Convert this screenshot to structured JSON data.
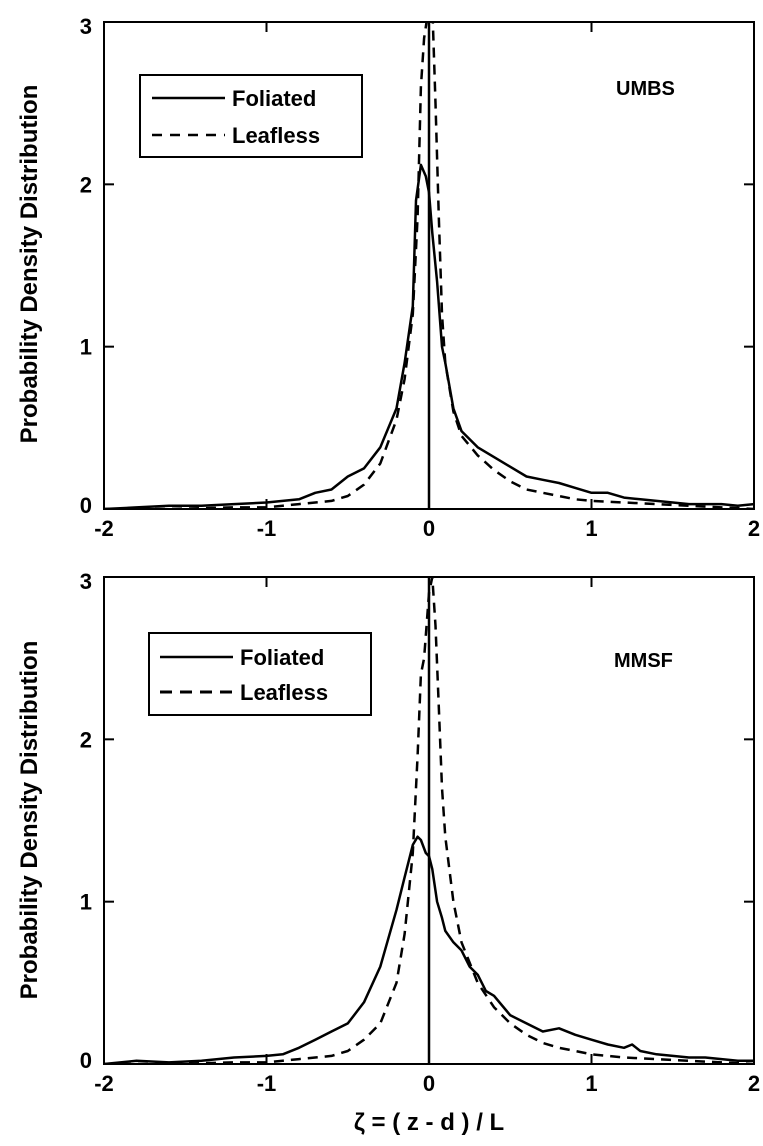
{
  "figure": {
    "xlabel": "ζ = ( z - d ) / L",
    "ylabel": "Probability Density Distribution"
  },
  "chart_data": [
    {
      "type": "line",
      "panel_label": "UMBS",
      "xlim": [
        -2,
        2
      ],
      "ylim": [
        0,
        3
      ],
      "xticks": [
        "-2",
        "-1",
        "0",
        "1",
        "2"
      ],
      "yticks": [
        "0",
        "1",
        "2",
        "3"
      ],
      "grid": false,
      "legend_position": "top-left",
      "vline_x": 0,
      "series": [
        {
          "name": "Foliated",
          "style": "solid",
          "x": [
            -2.0,
            -1.8,
            -1.6,
            -1.4,
            -1.2,
            -1.0,
            -0.9,
            -0.8,
            -0.7,
            -0.6,
            -0.5,
            -0.4,
            -0.3,
            -0.2,
            -0.15,
            -0.1,
            -0.08,
            -0.05,
            -0.02,
            0.0,
            0.02,
            0.05,
            0.08,
            0.1,
            0.15,
            0.2,
            0.3,
            0.4,
            0.5,
            0.6,
            0.7,
            0.8,
            0.9,
            1.0,
            1.1,
            1.2,
            1.3,
            1.4,
            1.5,
            1.6,
            1.7,
            1.8,
            1.9,
            2.0
          ],
          "y": [
            0.0,
            0.01,
            0.02,
            0.02,
            0.03,
            0.04,
            0.05,
            0.06,
            0.1,
            0.12,
            0.2,
            0.25,
            0.38,
            0.62,
            0.9,
            1.25,
            1.9,
            2.12,
            2.05,
            1.95,
            1.7,
            1.4,
            1.0,
            0.9,
            0.62,
            0.48,
            0.38,
            0.32,
            0.26,
            0.2,
            0.18,
            0.16,
            0.13,
            0.1,
            0.1,
            0.07,
            0.06,
            0.05,
            0.04,
            0.03,
            0.03,
            0.03,
            0.02,
            0.03
          ]
        },
        {
          "name": "Leafless",
          "style": "dashed",
          "x": [
            -2.0,
            -1.6,
            -1.2,
            -1.0,
            -0.8,
            -0.6,
            -0.5,
            -0.4,
            -0.3,
            -0.2,
            -0.15,
            -0.1,
            -0.07,
            -0.05,
            -0.03,
            0.0,
            0.02,
            0.04,
            0.06,
            0.08,
            0.1,
            0.15,
            0.2,
            0.3,
            0.4,
            0.5,
            0.6,
            0.7,
            0.8,
            0.9,
            1.0,
            1.2,
            1.4,
            1.6,
            1.8,
            2.0
          ],
          "y": [
            0.0,
            0.0,
            0.01,
            0.01,
            0.03,
            0.05,
            0.08,
            0.15,
            0.28,
            0.55,
            0.8,
            1.2,
            1.8,
            2.6,
            2.9,
            3.1,
            3.1,
            2.5,
            1.8,
            1.2,
            0.9,
            0.6,
            0.45,
            0.33,
            0.24,
            0.17,
            0.12,
            0.1,
            0.08,
            0.06,
            0.05,
            0.04,
            0.03,
            0.02,
            0.01,
            0.0
          ]
        }
      ]
    },
    {
      "type": "line",
      "panel_label": "MMSF",
      "xlim": [
        -2,
        2
      ],
      "ylim": [
        0,
        3
      ],
      "xticks": [
        "-2",
        "-1",
        "0",
        "1",
        "2"
      ],
      "yticks": [
        "0",
        "1",
        "2",
        "3"
      ],
      "grid": false,
      "legend_position": "top-left",
      "vline_x": 0,
      "series": [
        {
          "name": "Foliated",
          "style": "solid",
          "x": [
            -2.0,
            -1.8,
            -1.6,
            -1.4,
            -1.2,
            -1.0,
            -0.9,
            -0.8,
            -0.7,
            -0.6,
            -0.5,
            -0.4,
            -0.3,
            -0.2,
            -0.15,
            -0.1,
            -0.07,
            -0.05,
            -0.02,
            0.0,
            0.02,
            0.05,
            0.08,
            0.1,
            0.15,
            0.2,
            0.25,
            0.3,
            0.35,
            0.4,
            0.5,
            0.6,
            0.7,
            0.8,
            0.9,
            1.0,
            1.1,
            1.2,
            1.25,
            1.3,
            1.4,
            1.5,
            1.6,
            1.7,
            1.8,
            1.9,
            2.0
          ],
          "y": [
            0.0,
            0.02,
            0.01,
            0.02,
            0.04,
            0.05,
            0.06,
            0.1,
            0.15,
            0.2,
            0.25,
            0.38,
            0.6,
            0.95,
            1.15,
            1.35,
            1.4,
            1.38,
            1.3,
            1.28,
            1.2,
            1.0,
            0.9,
            0.82,
            0.75,
            0.7,
            0.6,
            0.55,
            0.45,
            0.42,
            0.3,
            0.25,
            0.2,
            0.22,
            0.18,
            0.15,
            0.12,
            0.1,
            0.12,
            0.08,
            0.06,
            0.05,
            0.04,
            0.04,
            0.03,
            0.02,
            0.02
          ]
        },
        {
          "name": "Leafless",
          "style": "dashed",
          "x": [
            -2.0,
            -1.6,
            -1.2,
            -1.0,
            -0.8,
            -0.6,
            -0.5,
            -0.4,
            -0.3,
            -0.2,
            -0.15,
            -0.1,
            -0.07,
            -0.05,
            -0.03,
            0.0,
            0.02,
            0.04,
            0.06,
            0.08,
            0.1,
            0.15,
            0.2,
            0.3,
            0.4,
            0.5,
            0.6,
            0.7,
            0.8,
            0.9,
            1.0,
            1.2,
            1.4,
            1.6,
            1.8,
            2.0
          ],
          "y": [
            0.0,
            0.0,
            0.01,
            0.01,
            0.03,
            0.05,
            0.08,
            0.15,
            0.25,
            0.5,
            0.8,
            1.3,
            1.9,
            2.4,
            2.5,
            2.9,
            3.0,
            2.7,
            2.2,
            1.7,
            1.4,
            1.0,
            0.75,
            0.5,
            0.35,
            0.25,
            0.18,
            0.13,
            0.1,
            0.08,
            0.06,
            0.04,
            0.03,
            0.02,
            0.01,
            0.0
          ]
        }
      ]
    }
  ]
}
